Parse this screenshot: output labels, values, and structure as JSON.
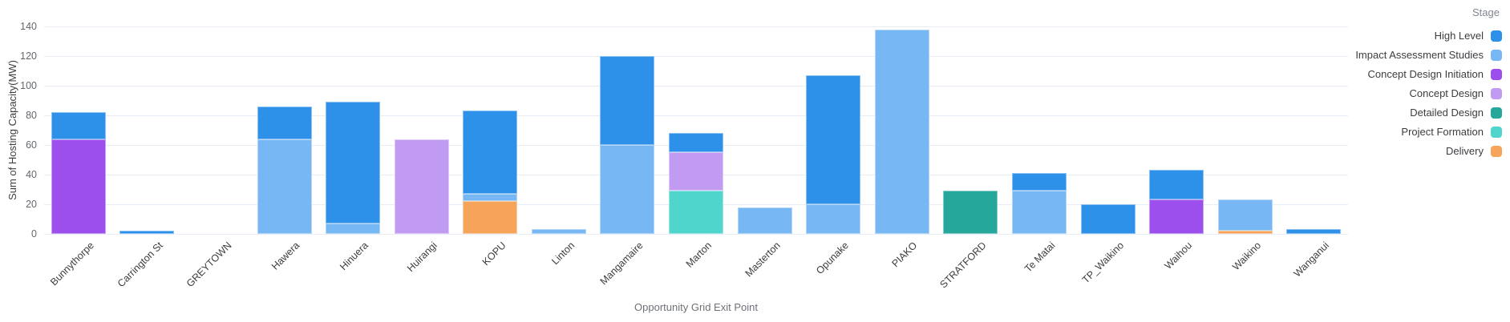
{
  "colors": {
    "background": "#FFFFFF",
    "gridline": "#E6EDF5",
    "axis_text": "#63676d",
    "label_text": "#3b3d40"
  },
  "chart_data": {
    "type": "bar",
    "stacked": true,
    "title": "",
    "xlabel": "Opportunity Grid Exit Point",
    "ylabel": "Sum of Hosting Capacity(MW)",
    "ylim": [
      0,
      140
    ],
    "yticks": [
      0,
      20,
      40,
      60,
      80,
      100,
      120,
      140
    ],
    "grid": true,
    "legend_title": "Stage",
    "legend_position": "top-right",
    "stack_note": "stacked bottom-to-top in reverse legend order (Delivery at bottom, High Level on top)",
    "categories": [
      "Bunnythorpe",
      "Carrington St",
      "GREYTOWN",
      "Hawera",
      "Hinuera",
      "Huirangi",
      "KOPU",
      "Linton",
      "Mangamaire",
      "Marton",
      "Masterton",
      "Opunake",
      "PIAKO",
      "STRATFORD",
      "Te Matai",
      "TP_Waikino",
      "Waihou",
      "Waikino",
      "Wanganui"
    ],
    "series": [
      {
        "name": "High Level",
        "color": "#2E91E9",
        "values": [
          18,
          2,
          0,
          22,
          82,
          0,
          56,
          0,
          60,
          13,
          0,
          87,
          0,
          0,
          12,
          20,
          20,
          0,
          3
        ]
      },
      {
        "name": "Impact Assessment Studies",
        "color": "#77B7F3",
        "values": [
          0,
          0,
          0,
          64,
          7,
          0,
          5,
          3,
          60,
          0,
          18,
          20,
          138,
          0,
          29,
          0,
          0,
          21,
          0
        ]
      },
      {
        "name": "Concept Design Initiation",
        "color": "#9C4FED",
        "values": [
          64,
          0,
          0,
          0,
          0,
          0,
          0,
          0,
          0,
          0,
          0,
          0,
          0,
          0,
          0,
          0,
          23,
          0,
          0
        ]
      },
      {
        "name": "Concept Design",
        "color": "#C19BF2",
        "values": [
          0,
          0,
          0,
          0,
          0,
          64,
          0,
          0,
          0,
          26,
          0,
          0,
          0,
          0,
          0,
          0,
          0,
          0,
          0
        ]
      },
      {
        "name": "Detailed Design",
        "color": "#26A79B",
        "values": [
          0,
          0,
          0,
          0,
          0,
          0,
          0,
          0,
          0,
          0,
          0,
          0,
          0,
          29,
          0,
          0,
          0,
          0,
          0
        ]
      },
      {
        "name": "Project Formation",
        "color": "#4FD5CC",
        "values": [
          0,
          0,
          0,
          0,
          0,
          0,
          0,
          0,
          0,
          29,
          0,
          0,
          0,
          0,
          0,
          0,
          0,
          0,
          0
        ]
      },
      {
        "name": "Delivery",
        "color": "#F6A45A",
        "values": [
          0,
          0,
          0,
          0,
          0,
          0,
          22,
          0,
          0,
          0,
          0,
          0,
          0,
          0,
          0,
          0,
          0,
          2,
          0
        ]
      }
    ]
  }
}
